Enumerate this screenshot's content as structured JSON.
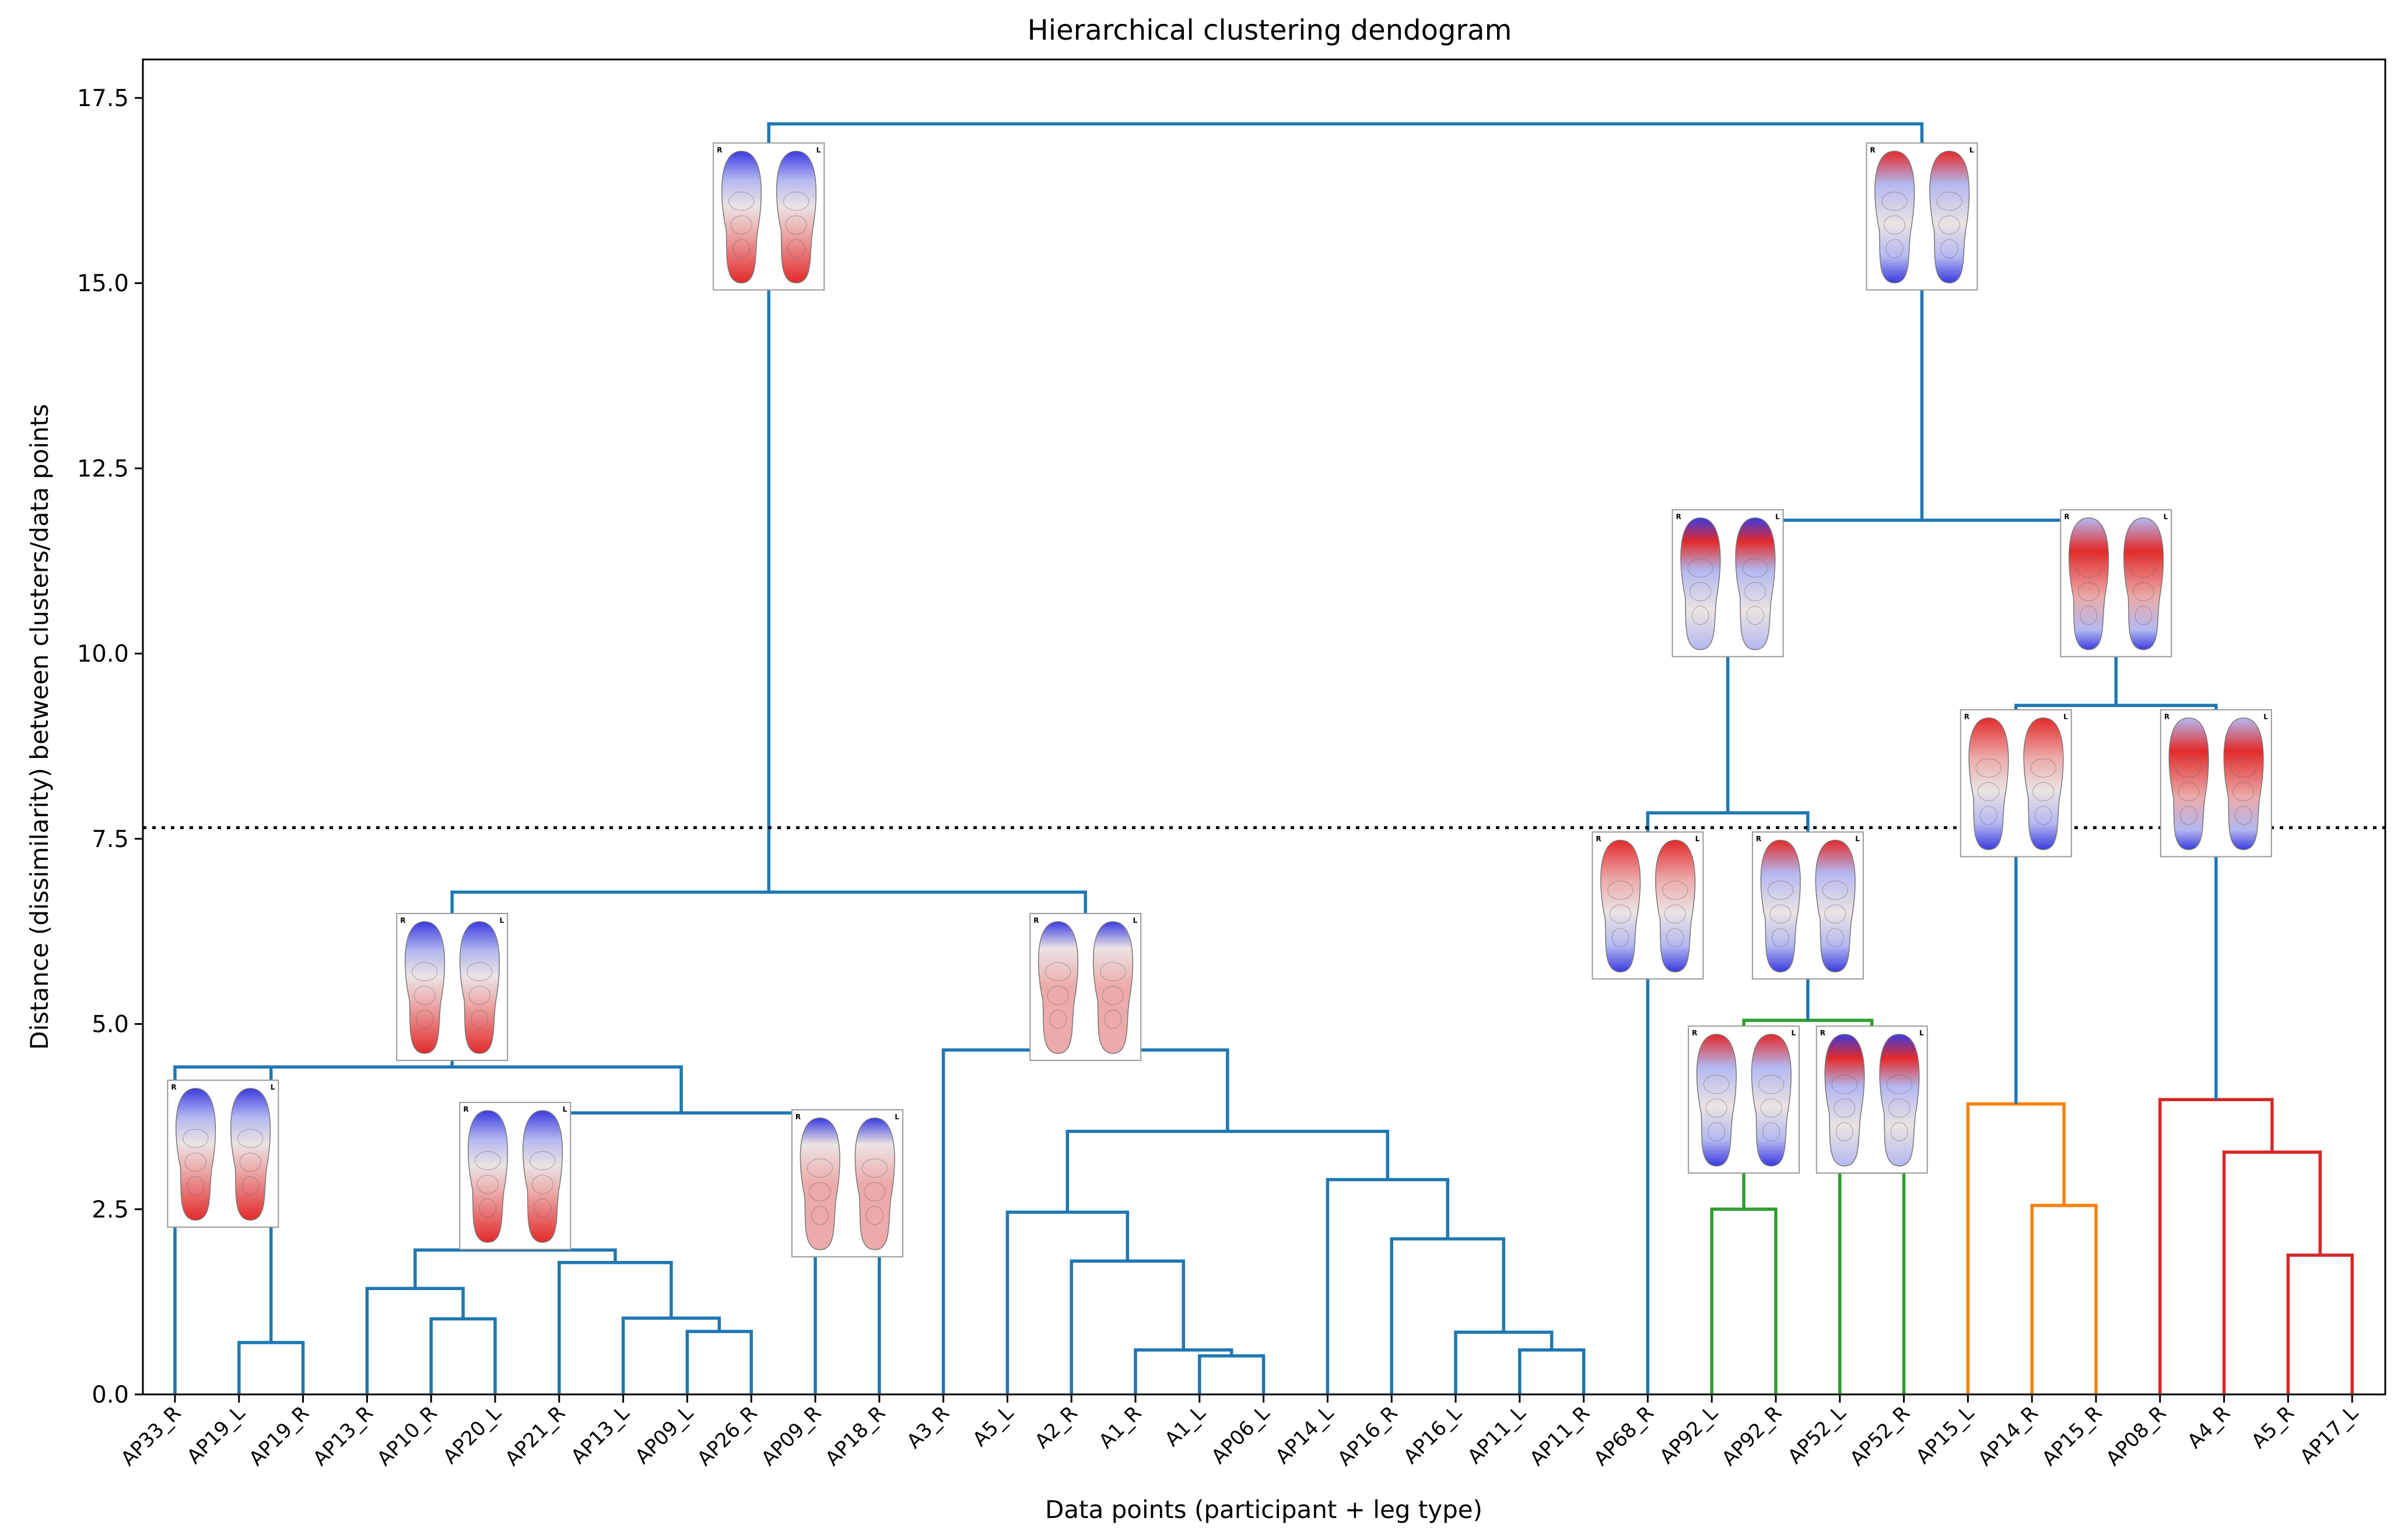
{
  "chart_data": {
    "type": "dendrogram",
    "title": "Hierarchical clustering dendogram",
    "xlabel": "Data points (participant + leg type)",
    "ylabel": "Distance (dissimilarity) between clusters/data points",
    "ylim": [
      0,
      17.9
    ],
    "yticks": [
      "0.0",
      "2.5",
      "5.0",
      "7.5",
      "10.0",
      "12.5",
      "15.0",
      "17.5"
    ],
    "cut_threshold": 7.65,
    "leaves": [
      "AP33_R",
      "AP19_L",
      "AP19_R",
      "AP13_R",
      "AP10_R",
      "AP20_L",
      "AP21_R",
      "AP13_L",
      "AP09_L",
      "AP26_R",
      "AP09_R",
      "AP18_R",
      "A3_R",
      "A5_L",
      "A2_R",
      "A1_R",
      "A1_L",
      "AP06_L",
      "AP14_L",
      "AP16_R",
      "AP16_L",
      "AP11_L",
      "AP11_R",
      "AP68_R",
      "AP92_L",
      "AP92_R",
      "AP52_L",
      "AP52_R",
      "AP15_L",
      "AP14_R",
      "AP15_R",
      "AP08_R",
      "A4_R",
      "A5_R",
      "AP17_L"
    ],
    "colors": {
      "C0": "#1f77b4",
      "C1": "#ff7f0e",
      "C2": "#2ca02c",
      "C3": "#d62728",
      "C4": "#9467bd"
    },
    "links": [
      {
        "x": [
          1,
          1,
          2,
          2
        ],
        "y": [
          0,
          0.7,
          0.7,
          0
        ],
        "c": "C0"
      },
      {
        "x": [
          4,
          4,
          5,
          5
        ],
        "y": [
          0,
          1.02,
          1.02,
          0
        ],
        "c": "C0"
      },
      {
        "x": [
          3,
          3,
          4.5,
          4.5
        ],
        "y": [
          0,
          1.43,
          1.43,
          1.02
        ],
        "c": "C0"
      },
      {
        "x": [
          8,
          8,
          9,
          9
        ],
        "y": [
          0,
          0.85,
          0.85,
          0
        ],
        "c": "C0"
      },
      {
        "x": [
          7,
          7,
          8.5,
          8.5
        ],
        "y": [
          0,
          1.03,
          1.03,
          0.85
        ],
        "c": "C0"
      },
      {
        "x": [
          6,
          6,
          7.75,
          7.75
        ],
        "y": [
          0,
          1.78,
          1.78,
          1.03
        ],
        "c": "C0"
      },
      {
        "x": [
          3.75,
          3.75,
          6.875,
          6.875
        ],
        "y": [
          1.43,
          1.95,
          1.95,
          1.78
        ],
        "c": "C0"
      },
      {
        "x": [
          10,
          10,
          11,
          11
        ],
        "y": [
          0,
          3.8,
          3.8,
          0
        ],
        "c": "C0"
      },
      {
        "x": [
          5.3125,
          5.3125,
          10.5,
          10.5
        ],
        "y": [
          1.95,
          3.8,
          3.8,
          3.8
        ],
        "c": "C0"
      },
      {
        "x": [
          0,
          0,
          1.5,
          1.5
        ],
        "y": [
          0,
          4.42,
          4.42,
          0.7
        ],
        "c": "C0"
      },
      {
        "x": [
          0.75,
          0.75,
          7.90625,
          7.90625
        ],
        "y": [
          4.42,
          4.42,
          4.42,
          3.8
        ],
        "c": "C0"
      },
      {
        "x": [
          16,
          16,
          17,
          17
        ],
        "y": [
          0,
          0.52,
          0.52,
          0
        ],
        "c": "C0"
      },
      {
        "x": [
          15,
          15,
          16.5,
          16.5
        ],
        "y": [
          0,
          0.6,
          0.6,
          0.52
        ],
        "c": "C0"
      },
      {
        "x": [
          14,
          14,
          15.75,
          15.75
        ],
        "y": [
          0,
          1.8,
          1.8,
          0.6
        ],
        "c": "C0"
      },
      {
        "x": [
          13,
          13,
          14.875,
          14.875
        ],
        "y": [
          0,
          2.46,
          2.46,
          1.8
        ],
        "c": "C0"
      },
      {
        "x": [
          21,
          21,
          22,
          22
        ],
        "y": [
          0,
          0.6,
          0.6,
          0
        ],
        "c": "C0"
      },
      {
        "x": [
          20,
          20,
          21.5,
          21.5
        ],
        "y": [
          0,
          0.84,
          0.84,
          0.6
        ],
        "c": "C0"
      },
      {
        "x": [
          19,
          19,
          20.75,
          20.75
        ],
        "y": [
          0,
          2.1,
          2.1,
          0.84
        ],
        "c": "C0"
      },
      {
        "x": [
          18,
          18,
          19.875,
          19.875
        ],
        "y": [
          0,
          2.9,
          2.9,
          2.1
        ],
        "c": "C0"
      },
      {
        "x": [
          13.9375,
          13.9375,
          18.9375,
          18.9375
        ],
        "y": [
          2.46,
          3.55,
          3.55,
          2.9
        ],
        "c": "C0"
      },
      {
        "x": [
          12,
          12,
          16.4375,
          16.4375
        ],
        "y": [
          0,
          4.65,
          4.65,
          3.55
        ],
        "c": "C0"
      },
      {
        "x": [
          4.328125,
          4.328125,
          14.21875,
          14.21875
        ],
        "y": [
          4.42,
          6.78,
          6.78,
          4.65
        ],
        "c": "C0"
      },
      {
        "x": [
          24,
          24,
          25,
          25
        ],
        "y": [
          0,
          2.5,
          2.5,
          0
        ],
        "c": "C2"
      },
      {
        "x": [
          26,
          26,
          27,
          27
        ],
        "y": [
          0,
          3.0,
          3.0,
          0
        ],
        "c": "C2"
      },
      {
        "x": [
          24.5,
          24.5,
          26.5,
          26.5
        ],
        "y": [
          2.5,
          5.05,
          5.05,
          3.0
        ],
        "c": "C2"
      },
      {
        "x": [
          23,
          23,
          25.5,
          25.5
        ],
        "y": [
          0,
          7.85,
          7.85,
          5.05
        ],
        "c": "C0"
      },
      {
        "x": [
          29,
          29,
          30,
          30
        ],
        "y": [
          0,
          2.55,
          2.55,
          0
        ],
        "c": "C1"
      },
      {
        "x": [
          28,
          28,
          29.5,
          29.5
        ],
        "y": [
          0,
          3.92,
          3.92,
          2.55
        ],
        "c": "C1"
      },
      {
        "x": [
          33,
          33,
          34,
          34
        ],
        "y": [
          0,
          1.88,
          1.88,
          0
        ],
        "c": "C3"
      },
      {
        "x": [
          32,
          32,
          33.5,
          33.5
        ],
        "y": [
          0,
          3.27,
          3.27,
          1.88
        ],
        "c": "C3"
      },
      {
        "x": [
          31,
          31,
          32.75,
          32.75
        ],
        "y": [
          0,
          3.98,
          3.98,
          3.27
        ],
        "c": "C3"
      },
      {
        "x": [
          28.75,
          28.75,
          31.875,
          31.875
        ],
        "y": [
          3.92,
          9.3,
          9.3,
          3.98
        ],
        "c": "C0"
      },
      {
        "x": [
          24.25,
          24.25,
          30.3125,
          30.3125
        ],
        "y": [
          7.85,
          11.8,
          11.8,
          9.3
        ],
        "c": "C0"
      },
      {
        "x": [
          9.2734375,
          9.2734375,
          27.28125,
          27.28125
        ],
        "y": [
          6.78,
          17.15,
          17.15,
          11.8
        ],
        "c": "C0"
      }
    ],
    "thumbnails": [
      {
        "node_x": 9.2734375,
        "y": 15.9,
        "pattern": "blue-top"
      },
      {
        "node_x": 27.28125,
        "y": 15.9,
        "pattern": "mixed"
      },
      {
        "node_x": 24.25,
        "y": 10.95,
        "pattern": "mixed-bright"
      },
      {
        "node_x": 30.3125,
        "y": 10.95,
        "pattern": "red-center"
      },
      {
        "node_x": 4.328125,
        "y": 5.5,
        "pattern": "blue-top"
      },
      {
        "node_x": 14.21875,
        "y": 5.5,
        "pattern": "light-red"
      },
      {
        "node_x": 0.75,
        "y": 3.25,
        "pattern": "blue-top"
      },
      {
        "node_x": 5.3125,
        "y": 2.95,
        "pattern": "blue-top"
      },
      {
        "node_x": 10.5,
        "y": 2.85,
        "pattern": "light-red"
      },
      {
        "node_x": 23,
        "y": 6.6,
        "pattern": "red-top"
      },
      {
        "node_x": 25.5,
        "y": 6.6,
        "pattern": "mixed"
      },
      {
        "node_x": 24.5,
        "y": 3.98,
        "pattern": "mixed"
      },
      {
        "node_x": 26.5,
        "y": 3.98,
        "pattern": "mixed-bright"
      },
      {
        "node_x": 28.75,
        "y": 8.25,
        "pattern": "red-top"
      },
      {
        "node_x": 31.875,
        "y": 8.25,
        "pattern": "red-center"
      }
    ],
    "thumbnail_text": {
      "left": "R",
      "right": "L"
    },
    "thumbnail_palette": {
      "red": "#e32a2a",
      "light_red": "#ecaaaa",
      "blue": "#3b3be0",
      "light_blue": "#b4b8f0",
      "neutral": "#ebe3e3"
    }
  }
}
